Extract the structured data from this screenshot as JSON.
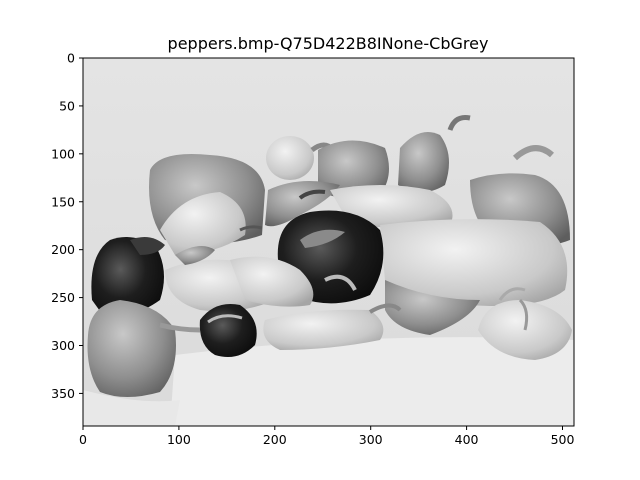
{
  "title": "peppers.bmp-Q75D422B8INone-CbGrey",
  "image": {
    "description_colors": {
      "background": "#dcdcdc",
      "dark": "#151515",
      "mid": "#8a8a8a",
      "light": "#eeeeee"
    },
    "width_units": 512,
    "height_units": 384
  },
  "axes": {
    "x": {
      "range": [
        0,
        512
      ],
      "ticks": [
        0,
        100,
        200,
        300,
        400,
        500
      ]
    },
    "y": {
      "range": [
        384,
        0
      ],
      "ticks": [
        0,
        50,
        100,
        150,
        200,
        250,
        300,
        350
      ]
    }
  }
}
